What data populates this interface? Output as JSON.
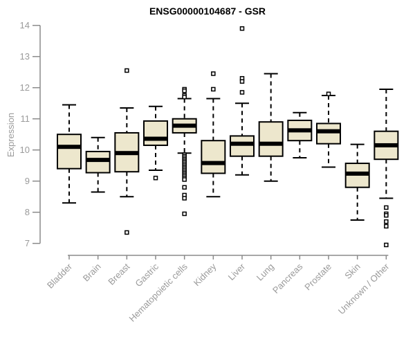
{
  "title": "ENSG00000104687 - GSR",
  "colors": {
    "box_fill": "#EDE7CD",
    "box_border": "#000000",
    "median": "#000000",
    "whisker": "#000000",
    "outlier_stroke": "#000000",
    "outlier_fill": "#ffffff",
    "axis": "#8a8a8a",
    "tick_label": "#9a9a9a",
    "title_color": "#000000"
  },
  "chart_data": {
    "type": "boxplot",
    "title": "ENSG00000104687 - GSR",
    "xlabel": "",
    "ylabel": "Expression",
    "ylim": [
      6.8,
      14.1
    ],
    "yticks": [
      7,
      8,
      9,
      10,
      11,
      12,
      13,
      14
    ],
    "grid": false,
    "legend": "none",
    "categories": [
      "Bladder",
      "Brain",
      "Breast",
      "Gastric",
      "Hematopoietic cells",
      "Kidney",
      "Liver",
      "Lung",
      "Pancreas",
      "Prostate",
      "Skin",
      "Unknown / Other"
    ],
    "series": [
      {
        "name": "Bladder",
        "whisker_low": 8.3,
        "q1": 9.4,
        "median": 10.1,
        "q3": 10.5,
        "whisker_high": 11.45,
        "outliers": []
      },
      {
        "name": "Brain",
        "whisker_low": 8.65,
        "q1": 9.27,
        "median": 9.68,
        "q3": 9.95,
        "whisker_high": 10.4,
        "outliers": []
      },
      {
        "name": "Breast",
        "whisker_low": 8.5,
        "q1": 9.3,
        "median": 9.9,
        "q3": 10.55,
        "whisker_high": 11.35,
        "outliers": [
          12.55,
          7.35
        ]
      },
      {
        "name": "Hematopoietic cells",
        "whisker_low": 9.9,
        "q1": 10.55,
        "median": 10.78,
        "q3": 11.0,
        "whisker_high": 11.65,
        "outliers": [
          11.95,
          11.9,
          11.75,
          11.7,
          9.85,
          9.8,
          9.75,
          9.7,
          9.65,
          9.6,
          9.55,
          9.5,
          9.45,
          9.4,
          9.35,
          9.3,
          9.25,
          9.2,
          9.15,
          9.1,
          9.05,
          8.8,
          8.55,
          8.45,
          7.95
        ]
      },
      {
        "name": "Gastric",
        "whisker_low": 9.35,
        "q1": 10.15,
        "median": 10.36,
        "q3": 10.93,
        "whisker_high": 11.4,
        "outliers": [
          9.1
        ]
      },
      {
        "name": "Kidney",
        "whisker_low": 8.5,
        "q1": 9.25,
        "median": 9.58,
        "q3": 10.3,
        "whisker_high": 11.65,
        "outliers": [
          12.45,
          11.95
        ]
      },
      {
        "name": "Liver",
        "whisker_low": 9.2,
        "q1": 9.8,
        "median": 10.2,
        "q3": 10.45,
        "whisker_high": 11.5,
        "outliers": [
          13.9,
          12.3,
          12.2,
          11.85
        ]
      },
      {
        "name": "Lung",
        "whisker_low": 9.0,
        "q1": 9.8,
        "median": 10.2,
        "q3": 10.9,
        "whisker_high": 12.45,
        "outliers": []
      },
      {
        "name": "Pancreas",
        "whisker_low": 9.75,
        "q1": 10.3,
        "median": 10.63,
        "q3": 10.95,
        "whisker_high": 11.2,
        "outliers": []
      },
      {
        "name": "Prostate",
        "whisker_low": 9.45,
        "q1": 10.2,
        "median": 10.6,
        "q3": 10.85,
        "whisker_high": 11.75,
        "outliers": [
          11.8
        ]
      },
      {
        "name": "Skin",
        "whisker_low": 7.75,
        "q1": 8.8,
        "median": 9.24,
        "q3": 9.57,
        "whisker_high": 10.18,
        "outliers": []
      },
      {
        "name": "Unknown / Other",
        "whisker_low": 8.45,
        "q1": 9.7,
        "median": 10.15,
        "q3": 10.6,
        "whisker_high": 11.95,
        "outliers": [
          8.15,
          7.95,
          7.9,
          7.7,
          7.55,
          6.95
        ]
      }
    ],
    "series_order": [
      "Bladder",
      "Brain",
      "Breast",
      "Gastric",
      "Hematopoietic cells",
      "Kidney",
      "Liver",
      "Lung",
      "Pancreas",
      "Prostate",
      "Skin",
      "Unknown / Other"
    ]
  }
}
